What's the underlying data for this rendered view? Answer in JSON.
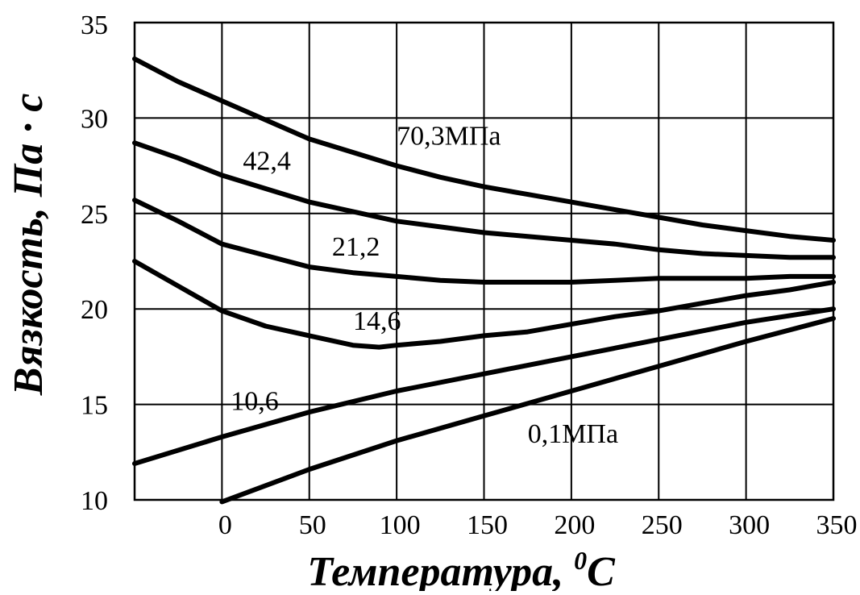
{
  "chart_data": {
    "type": "line",
    "title": "",
    "xlabel": "Температура,",
    "xlabel_superscript": "0",
    "xlabel_unit": "C",
    "ylabel": "Вязкость, Па · с",
    "xlim": [
      -50,
      350
    ],
    "ylim": [
      10,
      35
    ],
    "grid": true,
    "legend": "none",
    "x_ticks": [
      0,
      50,
      100,
      150,
      200,
      250,
      300,
      350
    ],
    "x_tick_labels": [
      "0",
      "50",
      "100",
      "150",
      "200",
      "250",
      "300",
      "350"
    ],
    "y_ticks": [
      10,
      15,
      20,
      25,
      30,
      35
    ],
    "y_tick_labels": [
      "10",
      "15",
      "20",
      "25",
      "30",
      "35"
    ],
    "series": [
      {
        "name": "70,3МПа",
        "x": [
          -50,
          -25,
          0,
          25,
          50,
          75,
          100,
          125,
          150,
          175,
          200,
          225,
          250,
          275,
          300,
          325,
          350
        ],
        "values": [
          33.1,
          31.9,
          30.9,
          29.9,
          28.9,
          28.2,
          27.5,
          26.9,
          26.4,
          26.0,
          25.6,
          25.2,
          24.8,
          24.4,
          24.1,
          23.8,
          23.6
        ]
      },
      {
        "name": "42,4",
        "x": [
          -50,
          -25,
          0,
          25,
          50,
          75,
          100,
          125,
          150,
          175,
          200,
          225,
          250,
          275,
          300,
          325,
          350
        ],
        "values": [
          28.7,
          27.9,
          27.0,
          26.3,
          25.6,
          25.1,
          24.6,
          24.3,
          24.0,
          23.8,
          23.6,
          23.4,
          23.1,
          22.9,
          22.8,
          22.7,
          22.7
        ]
      },
      {
        "name": "21,2",
        "x": [
          -50,
          -25,
          0,
          25,
          50,
          75,
          100,
          125,
          150,
          175,
          200,
          225,
          250,
          275,
          300,
          325,
          350
        ],
        "values": [
          25.7,
          24.6,
          23.4,
          22.8,
          22.2,
          21.9,
          21.7,
          21.5,
          21.4,
          21.4,
          21.4,
          21.5,
          21.6,
          21.6,
          21.6,
          21.7,
          21.7
        ]
      },
      {
        "name": "14,6",
        "x": [
          -50,
          -25,
          0,
          25,
          50,
          75,
          90,
          100,
          125,
          150,
          175,
          200,
          225,
          250,
          275,
          300,
          325,
          350
        ],
        "values": [
          22.5,
          21.2,
          19.9,
          19.1,
          18.6,
          18.1,
          18.0,
          18.1,
          18.3,
          18.6,
          18.8,
          19.2,
          19.6,
          19.9,
          20.3,
          20.7,
          21.0,
          21.4
        ]
      },
      {
        "name": "10,6",
        "x": [
          -50,
          0,
          50,
          100,
          150,
          200,
          250,
          300,
          350
        ],
        "values": [
          11.9,
          13.3,
          14.6,
          15.7,
          16.6,
          17.5,
          18.4,
          19.3,
          20.0
        ]
      },
      {
        "name": "0,1МПа",
        "x": [
          0,
          50,
          100,
          150,
          200,
          250,
          300,
          350
        ],
        "values": [
          9.9,
          11.6,
          13.1,
          14.4,
          15.7,
          17.0,
          18.3,
          19.5
        ]
      }
    ],
    "annotations": [
      {
        "text": "70,3МПа",
        "x": 100,
        "y": 28.6
      },
      {
        "text": "42,4",
        "x": 12,
        "y": 27.3
      },
      {
        "text": "21,2",
        "x": 63,
        "y": 22.8
      },
      {
        "text": "14,6",
        "x": 75,
        "y": 18.9
      },
      {
        "text": "10,6",
        "x": 5,
        "y": 14.7
      },
      {
        "text": "0,1МПа",
        "x": 175,
        "y": 13.0
      }
    ]
  }
}
